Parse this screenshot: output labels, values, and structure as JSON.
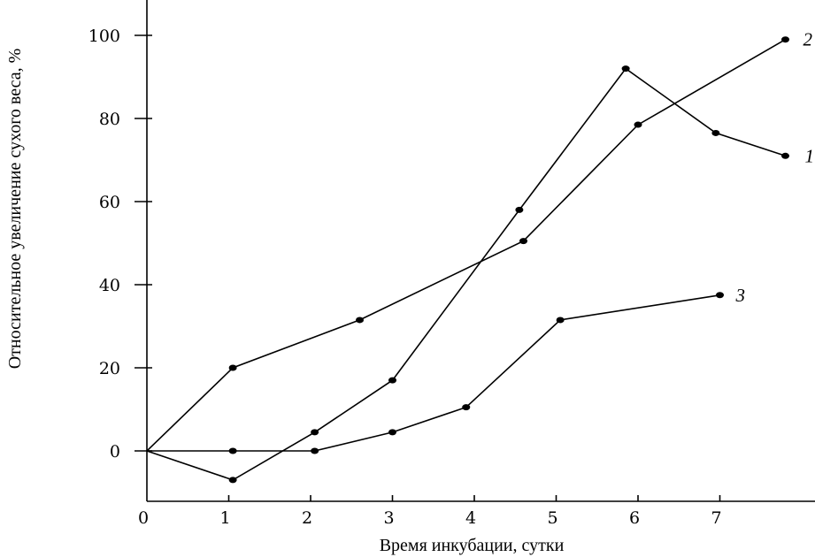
{
  "chart_data": {
    "type": "line",
    "xlabel": "Время инкубации, сутки",
    "ylabel": "Относительное увеличение сухого веса, %",
    "xlim": [
      0,
      8.3
    ],
    "ylim": [
      -10,
      108
    ],
    "x_ticks": [
      "0",
      "1",
      "2",
      "3",
      "4",
      "5",
      "6",
      "7"
    ],
    "y_ticks": [
      "0",
      "20",
      "40",
      "60",
      "80",
      "100"
    ],
    "grid": false,
    "legend": "inline labels at line ends",
    "series": [
      {
        "name": "1",
        "x": [
          0,
          1.05,
          2.05,
          3.0,
          4.55,
          5.85,
          6.95,
          7.8
        ],
        "y": [
          0,
          -7,
          4.5,
          17,
          58,
          92,
          76.5,
          71
        ]
      },
      {
        "name": "2",
        "x": [
          0,
          1.05,
          2.6,
          4.6,
          6.0,
          7.8
        ],
        "y": [
          0,
          20,
          31.5,
          50.5,
          78.5,
          99
        ]
      },
      {
        "name": "3",
        "x": [
          0,
          1.05,
          2.05,
          3.0,
          3.9,
          5.05,
          7.0
        ],
        "y": [
          0,
          0,
          0,
          4.5,
          10.5,
          31.5,
          37.5
        ]
      }
    ]
  }
}
